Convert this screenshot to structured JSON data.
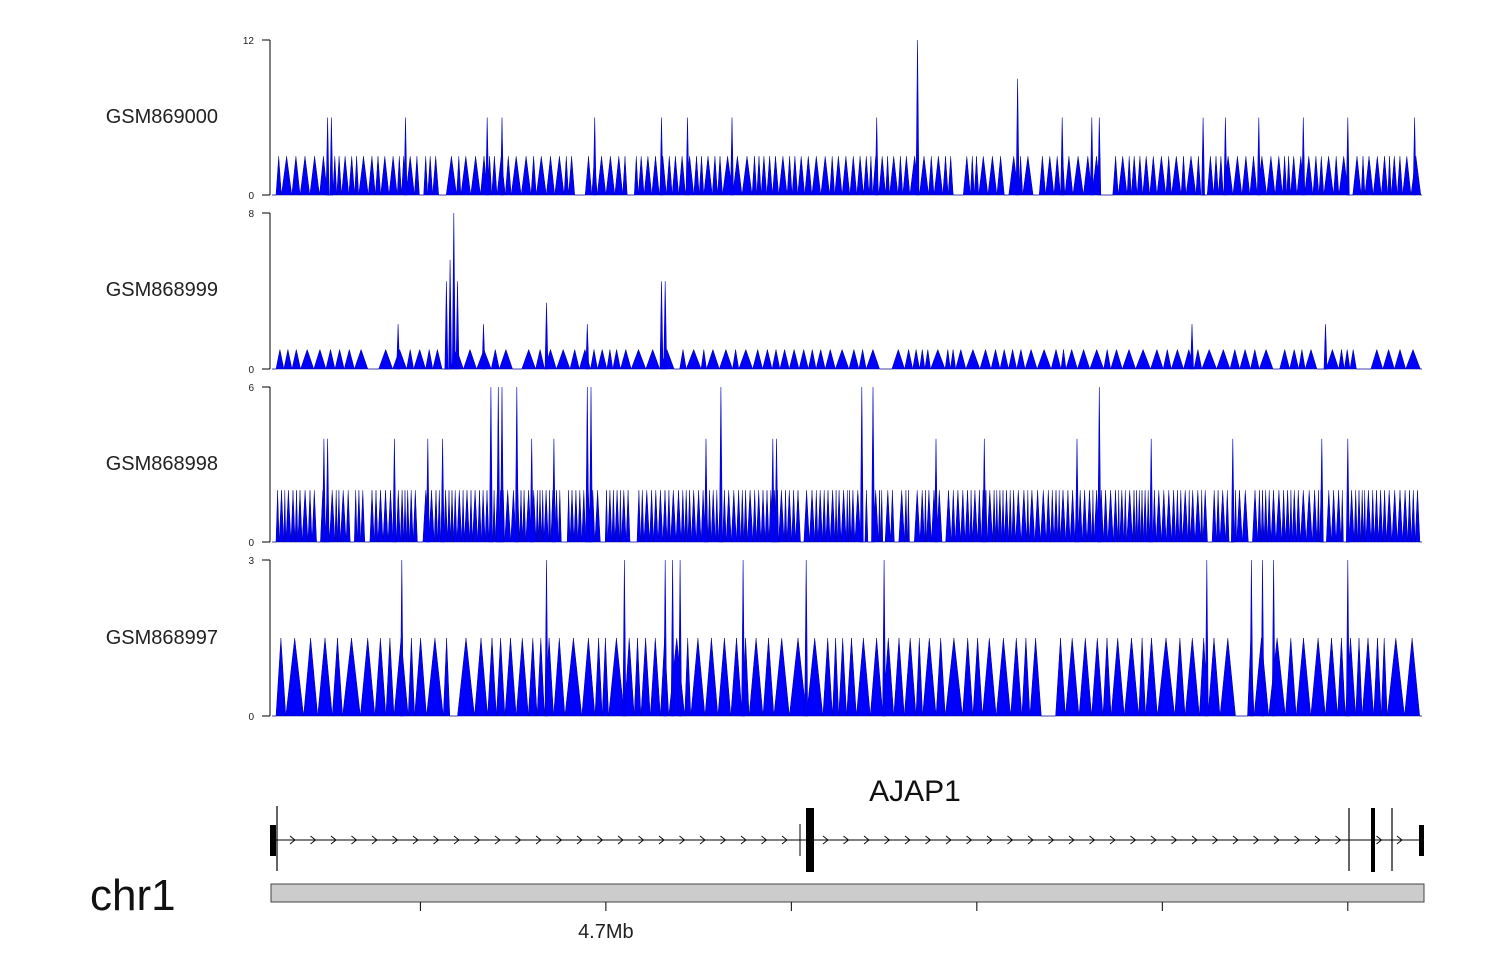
{
  "chart_data": {
    "type": "area",
    "chromosome": "chr1",
    "gene": {
      "name": "AJAP1",
      "strand": "+",
      "start_mb": 4.61,
      "end_mb": 4.92
    },
    "x_axis": {
      "range_mb": [
        4.61,
        4.92
      ],
      "tick_labels": [
        {
          "mb": 4.7,
          "label": "4.7Mb"
        }
      ],
      "minor_ticks_mb": [
        4.65,
        4.75,
        4.8,
        4.85,
        4.9
      ]
    },
    "tracks": [
      {
        "name": "GSM869000",
        "ylim": [
          0,
          12
        ],
        "tick_labels": [
          "12",
          "0"
        ],
        "baseline": 3,
        "peaks": [
          [
            4.625,
            6
          ],
          [
            4.626,
            6
          ],
          [
            4.646,
            6
          ],
          [
            4.668,
            6
          ],
          [
            4.672,
            6
          ],
          [
            4.697,
            6
          ],
          [
            4.715,
            6
          ],
          [
            4.722,
            6
          ],
          [
            4.734,
            6
          ],
          [
            4.773,
            6
          ],
          [
            4.784,
            12
          ],
          [
            4.811,
            9
          ],
          [
            4.823,
            6
          ],
          [
            4.831,
            6
          ],
          [
            4.833,
            6
          ],
          [
            4.861,
            6
          ],
          [
            4.867,
            6
          ],
          [
            4.876,
            6
          ],
          [
            4.888,
            6
          ],
          [
            4.9,
            6
          ],
          [
            4.918,
            6
          ]
        ]
      },
      {
        "name": "GSM868999",
        "ylim": [
          0,
          8
        ],
        "tick_labels": [
          "8",
          "0"
        ],
        "baseline": 1,
        "peaks": [
          [
            4.644,
            2.3
          ],
          [
            4.657,
            4.5
          ],
          [
            4.658,
            5.6
          ],
          [
            4.659,
            8
          ],
          [
            4.66,
            4.5
          ],
          [
            4.667,
            2.3
          ],
          [
            4.684,
            3.4
          ],
          [
            4.695,
            2.3
          ],
          [
            4.715,
            4.5
          ],
          [
            4.716,
            4.5
          ],
          [
            4.858,
            2.3
          ],
          [
            4.894,
            2.3
          ]
        ]
      },
      {
        "name": "GSM868998",
        "ylim": [
          0,
          6
        ],
        "tick_labels": [
          "6",
          "0"
        ],
        "baseline": 2,
        "peaks": [
          [
            4.624,
            4
          ],
          [
            4.625,
            4
          ],
          [
            4.643,
            4
          ],
          [
            4.652,
            4
          ],
          [
            4.656,
            4
          ],
          [
            4.669,
            6
          ],
          [
            4.671,
            6
          ],
          [
            4.672,
            6
          ],
          [
            4.676,
            6
          ],
          [
            4.68,
            4
          ],
          [
            4.686,
            4
          ],
          [
            4.695,
            6
          ],
          [
            4.696,
            6
          ],
          [
            4.727,
            4
          ],
          [
            4.731,
            6
          ],
          [
            4.745,
            4
          ],
          [
            4.746,
            4
          ],
          [
            4.769,
            6
          ],
          [
            4.772,
            6
          ],
          [
            4.789,
            4
          ],
          [
            4.802,
            4
          ],
          [
            4.827,
            4
          ],
          [
            4.833,
            6
          ],
          [
            4.847,
            4
          ],
          [
            4.869,
            4
          ],
          [
            4.893,
            4
          ],
          [
            4.9,
            4
          ]
        ]
      },
      {
        "name": "GSM868997",
        "ylim": [
          0,
          3
        ],
        "tick_labels": [
          "3",
          "0"
        ],
        "baseline": 1.5,
        "peaks": [
          [
            4.645,
            3
          ],
          [
            4.684,
            3
          ],
          [
            4.705,
            3
          ],
          [
            4.716,
            3
          ],
          [
            4.718,
            3
          ],
          [
            4.72,
            3
          ],
          [
            4.737,
            3
          ],
          [
            4.754,
            3
          ],
          [
            4.775,
            3
          ],
          [
            4.862,
            3
          ],
          [
            4.874,
            3
          ],
          [
            4.877,
            3
          ],
          [
            4.88,
            3
          ],
          [
            4.9,
            3
          ]
        ]
      }
    ]
  }
}
